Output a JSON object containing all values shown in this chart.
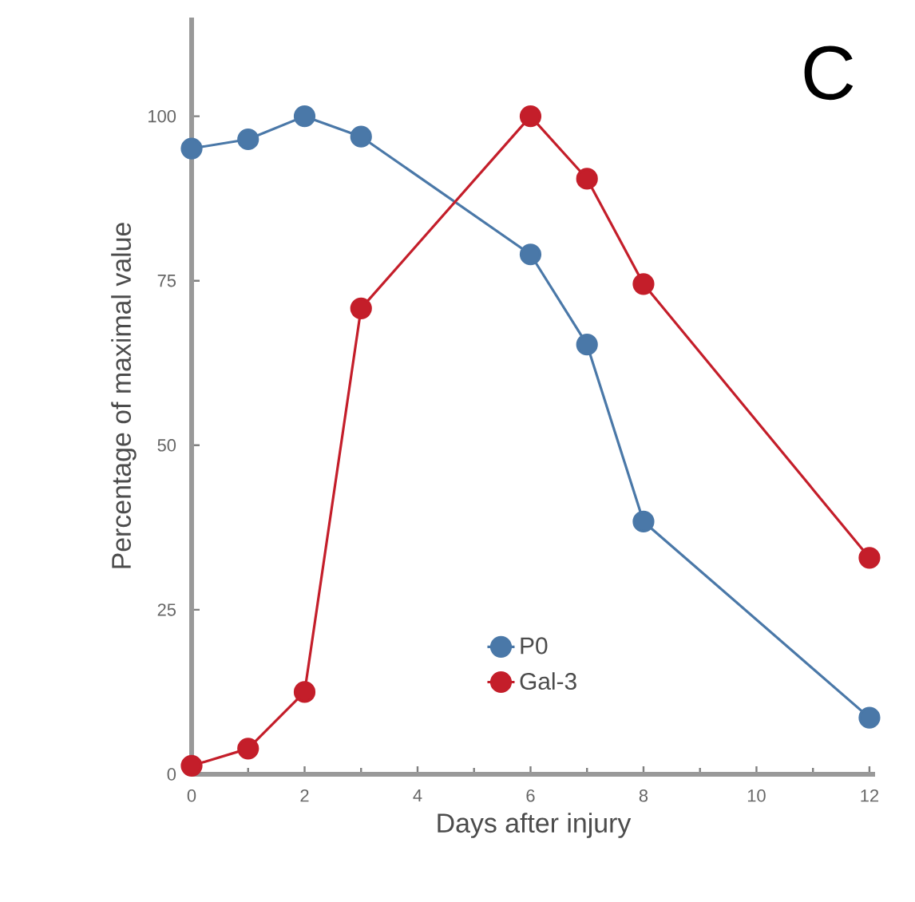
{
  "chart_data": {
    "type": "line",
    "xlabel": "Days after injury",
    "ylabel": "Percentage of maximal value",
    "x": [
      0,
      1,
      2,
      3,
      6,
      7,
      8,
      12
    ],
    "series": [
      {
        "name": "P0",
        "color": "#4a78a8",
        "values": [
          95.1,
          96.5,
          100,
          96.9,
          79,
          65.3,
          38.4,
          8.6
        ]
      },
      {
        "name": "Gal-3",
        "color": "#c41e2a",
        "values": [
          1.3,
          3.9,
          12.5,
          70.8,
          100,
          90.5,
          74.5,
          32.9
        ]
      }
    ],
    "xlim": [
      0,
      12.1
    ],
    "ylim": [
      0,
      115
    ],
    "xticks": [
      0,
      2,
      4,
      6,
      8,
      10,
      12
    ],
    "yticks": [
      0,
      25,
      50,
      75,
      100
    ],
    "legend": "bottom",
    "marker": "circle",
    "line_style": "solid",
    "grid": false,
    "annotations": [
      "C"
    ]
  }
}
